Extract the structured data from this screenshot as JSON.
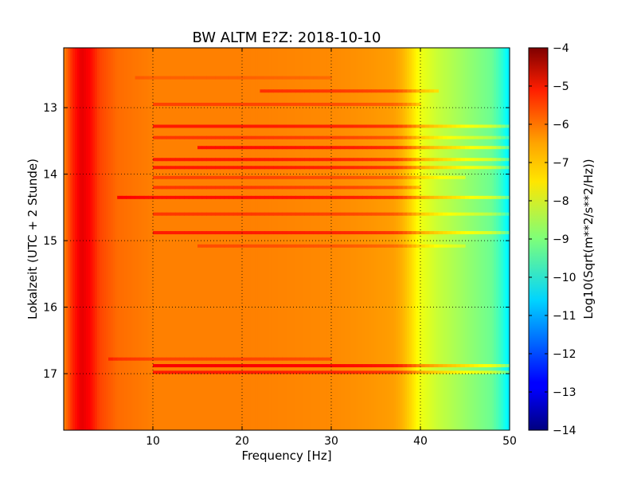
{
  "chart_data": {
    "type": "heatmap",
    "title": "BW ALTM E?Z: 2018-10-10",
    "xlabel": "Frequency [Hz]",
    "ylabel": "Lokalzeit (UTC + 2 Stunde)",
    "xlim": [
      0,
      50
    ],
    "ylim": [
      17.85,
      12.1
    ],
    "y_axis_inverted": true,
    "grid": "dotted",
    "x_ticks": [
      10,
      20,
      30,
      40,
      50
    ],
    "y_ticks": [
      13,
      14,
      15,
      16,
      17
    ],
    "colorbar": {
      "label": "Log10(Sqrt(m**2/s**2/Hz))",
      "range": [
        -14,
        -4
      ],
      "ticks": [
        -4,
        -5,
        -6,
        -7,
        -8,
        -9,
        -10,
        -11,
        -12,
        -13,
        -14
      ],
      "colormap": "jet"
    },
    "background_profile": {
      "frequency_hz": [
        0,
        1,
        2,
        3,
        4,
        6,
        10,
        20,
        30,
        34,
        37,
        38,
        39,
        40,
        42,
        44,
        46,
        48,
        49,
        50
      ],
      "log_amplitude": [
        -6.6,
        -5.6,
        -5.0,
        -5.3,
        -5.9,
        -6.3,
        -6.5,
        -6.5,
        -6.6,
        -6.7,
        -6.8,
        -7.0,
        -7.4,
        -7.9,
        -8.3,
        -8.6,
        -8.9,
        -9.2,
        -9.7,
        -10.5
      ]
    },
    "bands": [
      {
        "time": 12.55,
        "f_start": 8,
        "f_end": 30,
        "delta": 0.3
      },
      {
        "time": 12.75,
        "f_start": 22,
        "f_end": 42,
        "delta": 0.8
      },
      {
        "time": 12.95,
        "f_start": 10,
        "f_end": 40,
        "delta": 0.6
      },
      {
        "time": 13.28,
        "f_start": 10,
        "f_end": 50,
        "delta": 1.0
      },
      {
        "time": 13.45,
        "f_start": 10,
        "f_end": 50,
        "delta": 0.7
      },
      {
        "time": 13.6,
        "f_start": 15,
        "f_end": 50,
        "delta": 1.1
      },
      {
        "time": 13.78,
        "f_start": 10,
        "f_end": 50,
        "delta": 1.0
      },
      {
        "time": 13.9,
        "f_start": 10,
        "f_end": 50,
        "delta": 1.0
      },
      {
        "time": 14.05,
        "f_start": 10,
        "f_end": 45,
        "delta": 0.6
      },
      {
        "time": 14.2,
        "f_start": 10,
        "f_end": 40,
        "delta": 0.7
      },
      {
        "time": 14.35,
        "f_start": 6,
        "f_end": 50,
        "delta": 1.1
      },
      {
        "time": 14.6,
        "f_start": 10,
        "f_end": 50,
        "delta": 0.7
      },
      {
        "time": 14.88,
        "f_start": 10,
        "f_end": 50,
        "delta": 1.0
      },
      {
        "time": 15.08,
        "f_start": 15,
        "f_end": 45,
        "delta": 0.5
      },
      {
        "time": 16.78,
        "f_start": 5,
        "f_end": 30,
        "delta": 0.6
      },
      {
        "time": 16.88,
        "f_start": 10,
        "f_end": 50,
        "delta": 1.3
      },
      {
        "time": 16.98,
        "f_start": 10,
        "f_end": 50,
        "delta": 1.0
      }
    ]
  }
}
